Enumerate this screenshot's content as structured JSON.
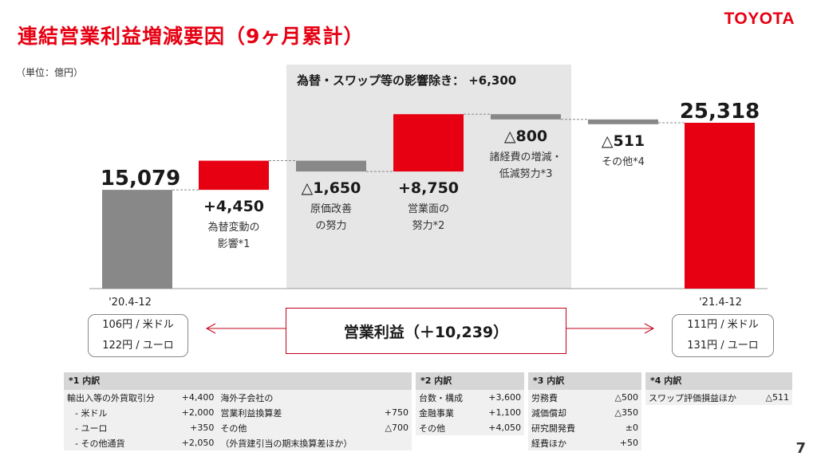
{
  "title": "連結営業利益増減要因（9ヶ月累計）",
  "logo": "TOYOTA",
  "unit": "（単位：億円）",
  "page_number": "7",
  "fx_box_label": "為替・スワップ等の影響除き：  +6,300",
  "center_box": "営業利益（＋10,239）",
  "left_period": "'20.4-12",
  "right_period": "'21.4-12",
  "left_rates": [
    "106円 / 米ドル",
    "122円 / ユーロ"
  ],
  "right_rates": [
    "111円 / 米ドル",
    "131円 / ユーロ"
  ],
  "colors": {
    "accent": "#e60012",
    "gray": "#888888",
    "shade": "#e6e6e6"
  },
  "chart_data": {
    "type": "bar",
    "subtype": "waterfall",
    "bars": [
      {
        "value_label": "15,079",
        "labels": [],
        "kind": "total",
        "start": 0,
        "end": 15079
      },
      {
        "value_label": "+4,450",
        "labels": [
          "為替変動の",
          "影響*1"
        ],
        "kind": "increase",
        "start": 15079,
        "end": 19529
      },
      {
        "value_label": "△1,650",
        "labels": [
          "原価改善",
          "の努力"
        ],
        "kind": "decrease",
        "start": 19529,
        "end": 17879
      },
      {
        "value_label": "+8,750",
        "labels": [
          "営業面の",
          "努力*2"
        ],
        "kind": "increase",
        "start": 17879,
        "end": 26629
      },
      {
        "value_label": "△800",
        "labels": [
          "諸経費の増減・",
          "低減努力*3"
        ],
        "kind": "decrease",
        "start": 26629,
        "end": 25829
      },
      {
        "value_label": "△511",
        "labels": [
          "その他*4"
        ],
        "kind": "decrease",
        "start": 25829,
        "end": 25318
      },
      {
        "value_label": "25,318",
        "labels": [],
        "kind": "total",
        "start": 0,
        "end": 25318
      }
    ]
  },
  "notes": [
    {
      "header": "*1 内訳",
      "left": [
        [
          "輸出入等の外貨取引分",
          "+4,400"
        ],
        [
          "- 米ドル",
          "+2,000"
        ],
        [
          "- ユーロ",
          "+350"
        ],
        [
          "- その他通貨",
          "+2,050"
        ]
      ],
      "right": [
        [
          "海外子会社の",
          ""
        ],
        [
          "営業利益換算差",
          "+750"
        ],
        [
          "その他",
          "△700"
        ],
        [
          "（外貨建引当の期末換算差ほか）",
          ""
        ]
      ]
    },
    {
      "header": "*2 内訳",
      "rows": [
        [
          "台数・構成",
          "+3,600"
        ],
        [
          "金融事業",
          "+1,100"
        ],
        [
          "その他",
          "+4,050"
        ]
      ]
    },
    {
      "header": "*3 内訳",
      "rows": [
        [
          "労務費",
          "△500"
        ],
        [
          "減価償却",
          "△350"
        ],
        [
          "研究開発費",
          "±0"
        ],
        [
          "経費ほか",
          "+50"
        ]
      ]
    },
    {
      "header": "*4 内訳",
      "rows": [
        [
          "スワップ評価損益ほか",
          "△511"
        ]
      ]
    }
  ]
}
